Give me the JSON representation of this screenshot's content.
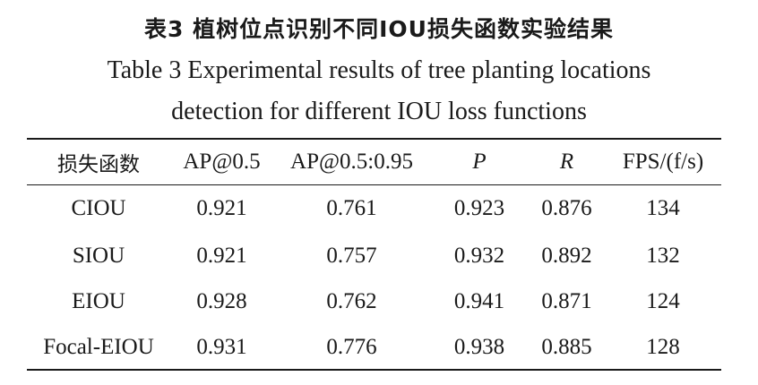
{
  "caption": {
    "cn": "表3  植树位点识别不同IOU损失函数实验结果",
    "en_line1": "Table 3  Experimental results of tree planting locations",
    "en_line2": "detection for different IOU loss functions"
  },
  "table": {
    "columns": [
      "损失函数",
      "AP@0.5",
      "AP@0.5:0.95",
      "P",
      "R",
      "FPS/(f/s)"
    ],
    "rows": [
      [
        "CIOU",
        "0.921",
        "0.761",
        "0.923",
        "0.876",
        "134"
      ],
      [
        "SIOU",
        "0.921",
        "0.757",
        "0.932",
        "0.892",
        "132"
      ],
      [
        "EIOU",
        "0.928",
        "0.762",
        "0.941",
        "0.871",
        "124"
      ],
      [
        "Focal-EIOU",
        "0.931",
        "0.776",
        "0.938",
        "0.885",
        "128"
      ]
    ]
  }
}
